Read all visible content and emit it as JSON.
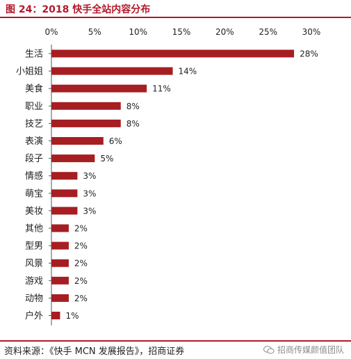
{
  "header": {
    "title": "图 24：2018 快手全站内容分布"
  },
  "chart_data": {
    "type": "bar",
    "orientation": "horizontal",
    "title": "图 24：2018 快手全站内容分布",
    "categories": [
      "生活",
      "小姐姐",
      "美食",
      "职业",
      "技艺",
      "表演",
      "段子",
      "情感",
      "萌宝",
      "美妆",
      "其他",
      "型男",
      "风景",
      "游戏",
      "动物",
      "户外"
    ],
    "values": [
      28,
      14,
      11,
      8,
      8,
      6,
      5,
      3,
      3,
      3,
      2,
      2,
      2,
      2,
      2,
      1
    ],
    "value_labels": [
      "28%",
      "14%",
      "11%",
      "8%",
      "8%",
      "6%",
      "5%",
      "3%",
      "3%",
      "3%",
      "2%",
      "2%",
      "2%",
      "2%",
      "2%",
      "1%"
    ],
    "x_ticks": [
      0,
      5,
      10,
      15,
      20,
      25,
      30
    ],
    "x_tick_labels": [
      "0%",
      "5%",
      "10%",
      "15%",
      "20%",
      "25%",
      "30%"
    ],
    "xlim": [
      0,
      30
    ],
    "axis_position": "top",
    "grid": false,
    "bar_color": "#a61e22",
    "title_color": "#b2182b"
  },
  "footer": {
    "source": "资料来源：《快手 MCN 发展报告》，招商证券",
    "watermark": "招商传媒颜值团队",
    "watermark_icon": "wechat-icon"
  }
}
